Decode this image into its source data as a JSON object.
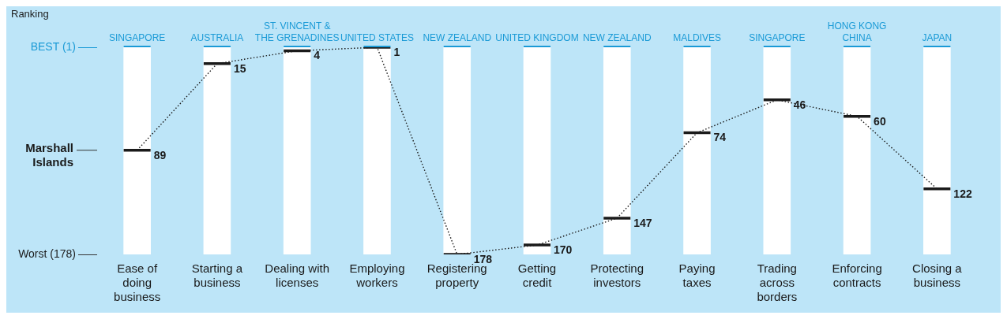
{
  "chart_data": {
    "type": "line",
    "ylabel": "Ranking",
    "categories": [
      "Ease of doing business",
      "Starting a business",
      "Dealing with licenses",
      "Employing workers",
      "Registering property",
      "Getting credit",
      "Protecting investors",
      "Paying taxes",
      "Trading across borders",
      "Enforcing contracts",
      "Closing a business"
    ],
    "series": [
      {
        "type": "bar",
        "color": "#ffffff",
        "base": [
          1,
          1,
          1,
          1,
          1,
          1,
          1,
          1,
          1,
          1,
          1
        ],
        "values": [
          177,
          177,
          177,
          177,
          177,
          177,
          177,
          177,
          177,
          177,
          177
        ]
      },
      {
        "name": "Marshall Islands",
        "color": "#1a1a1a",
        "values": [
          89,
          15,
          4,
          1,
          178,
          170,
          147,
          74,
          46,
          60,
          122
        ],
        "value_labels": [
          "89",
          "15",
          "4",
          "1",
          "178",
          "170",
          "147",
          "74",
          "46",
          "60",
          "122"
        ]
      }
    ],
    "ylim": [
      178,
      1
    ],
    "yticks": [
      {
        "value": 1,
        "label": "BEST (1)"
      },
      {
        "value": 178,
        "label": "Worst (178)"
      }
    ],
    "grid": false,
    "line_style": "dotted",
    "annotations": [
      "SINGAPORE",
      "AUSTRALIA",
      "ST. VINCENT & THE GRENADINES",
      "UNITED STATES",
      "NEW ZEALAND",
      "UNITED KINGDOM",
      "NEW ZEALAND",
      "MALDIVES",
      "SINGAPORE",
      "HONG KONG CHINA",
      "JAPAN"
    ]
  }
}
